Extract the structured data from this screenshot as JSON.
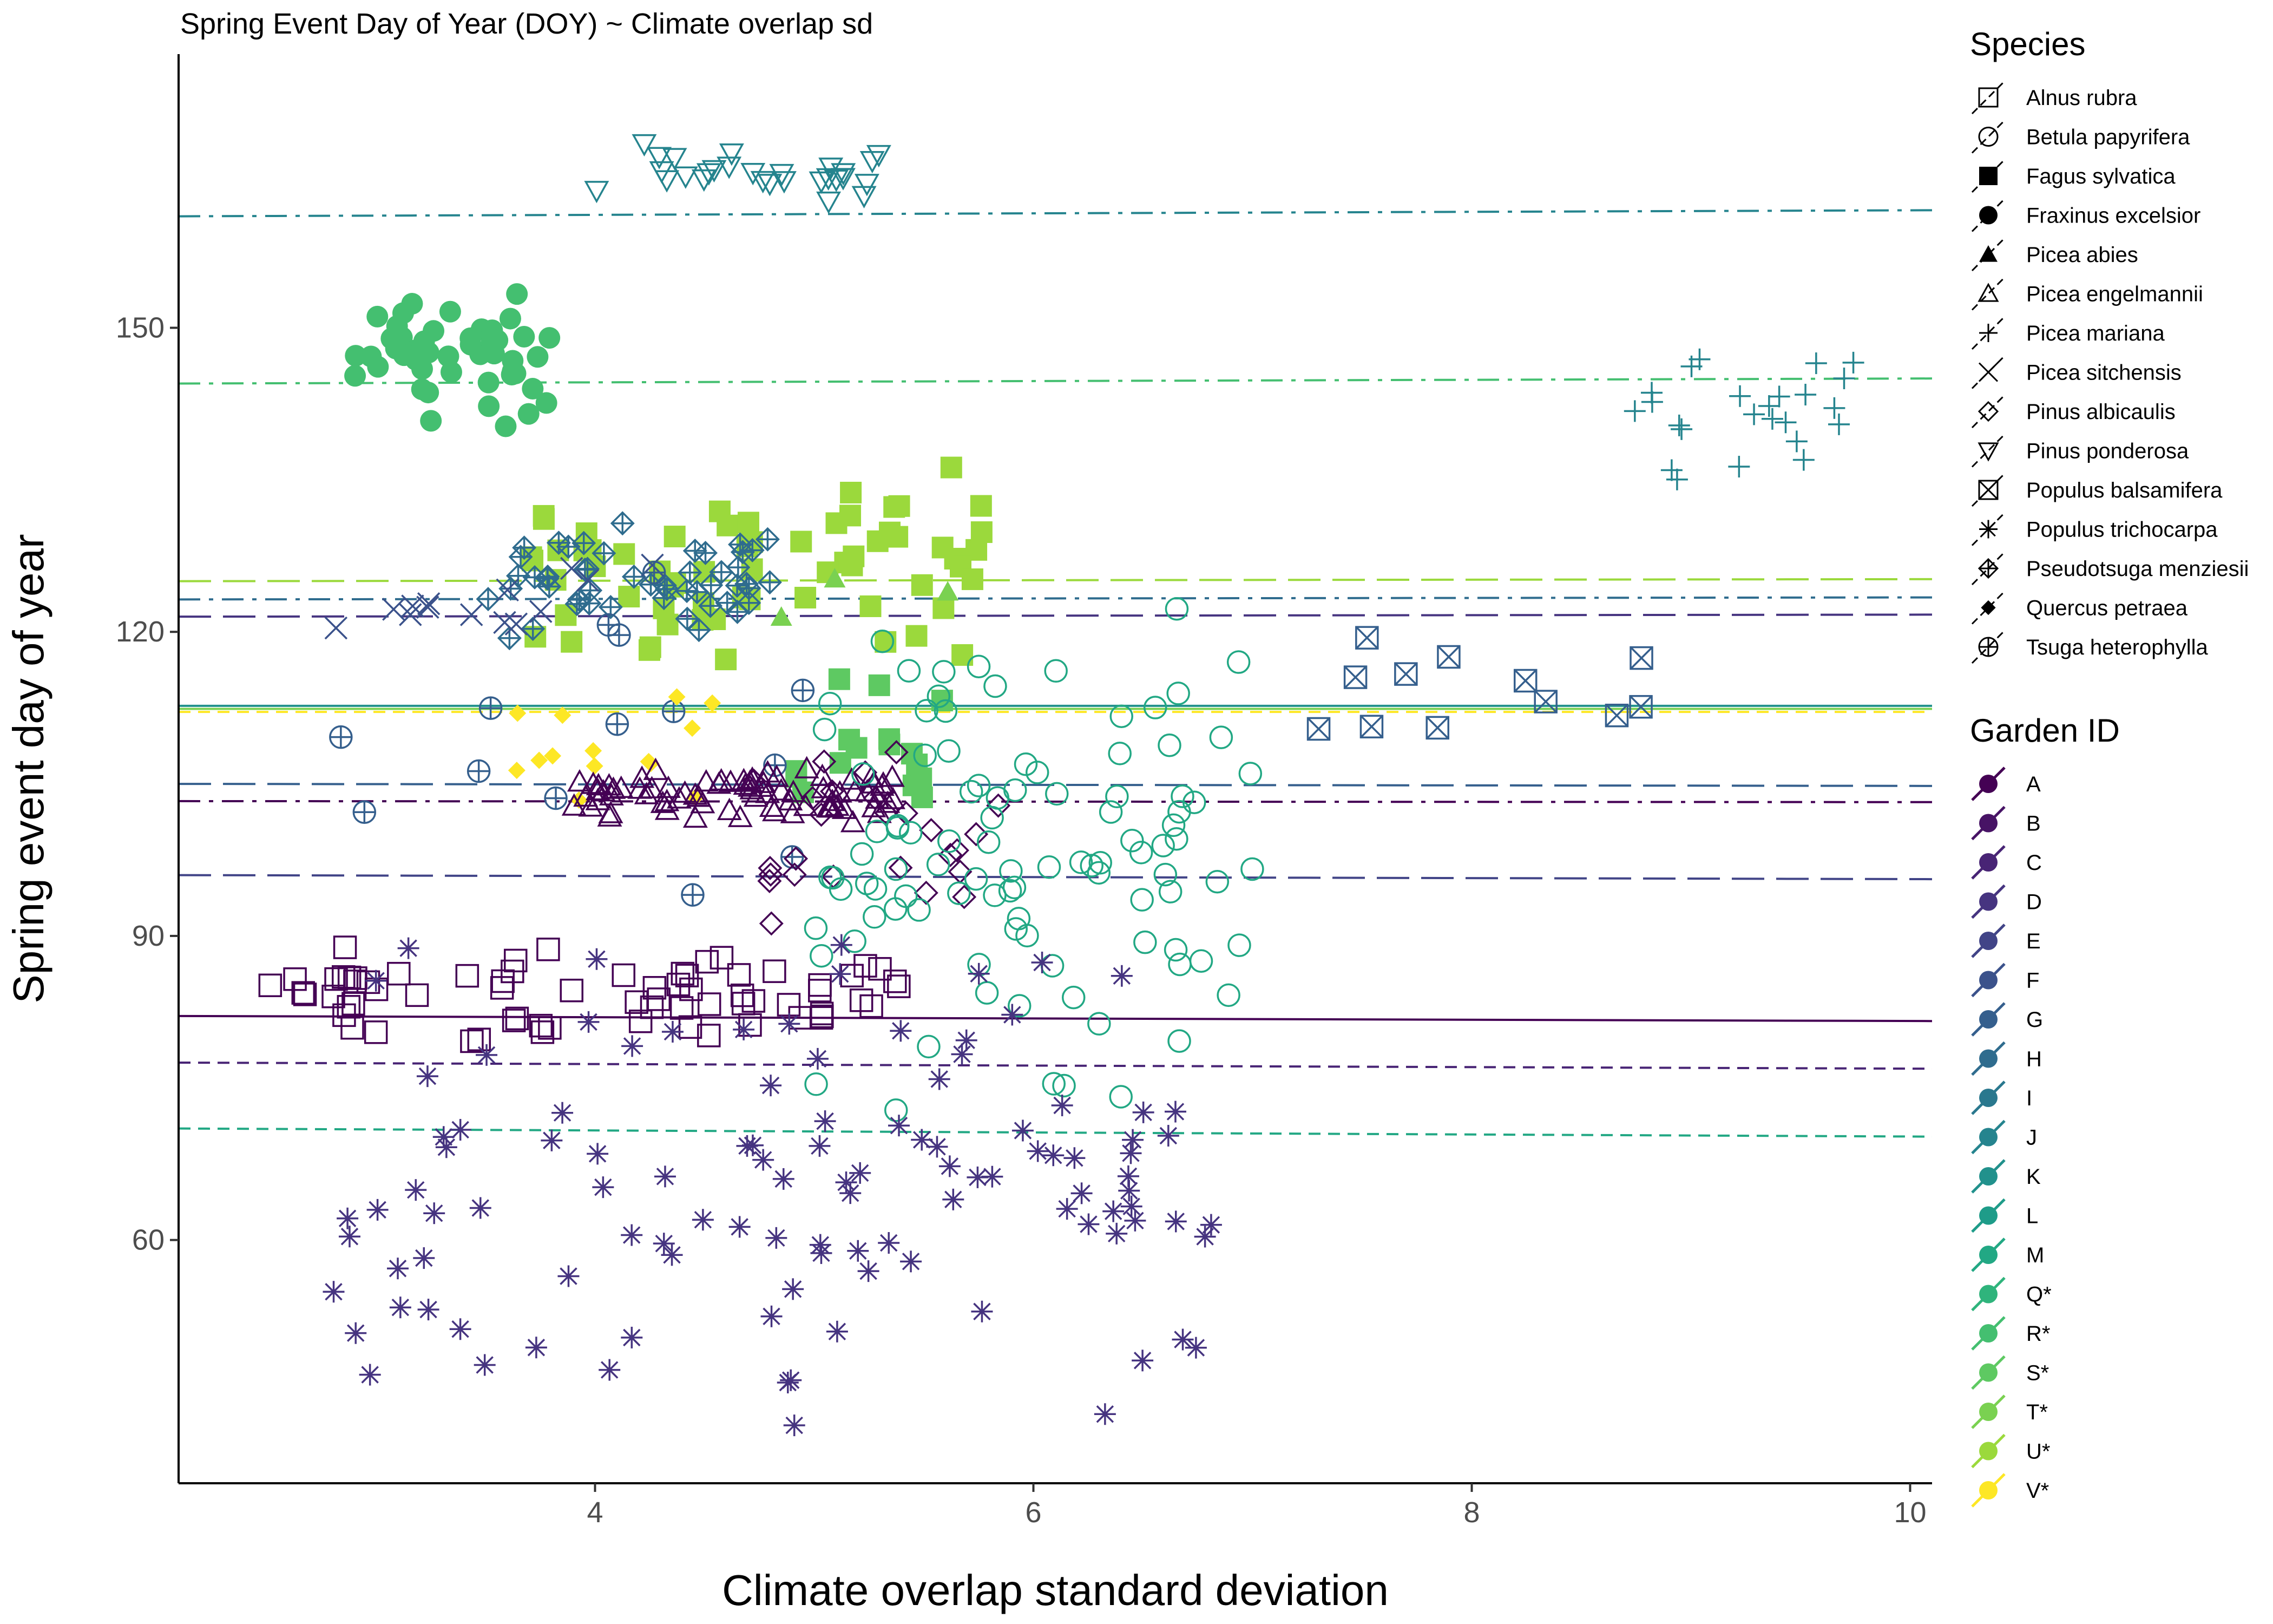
{
  "chart_data": {
    "type": "scatter",
    "title": "Spring Event Day of Year (DOY) ~ Climate overlap sd",
    "xlabel": "Climate overlap standard deviation",
    "ylabel": "Spring event day of year",
    "xlim": [
      2.1,
      10.1
    ],
    "ylim": [
      36,
      177
    ],
    "x_ticks": [
      4,
      6,
      8,
      10
    ],
    "y_ticks": [
      60,
      90,
      120,
      150
    ],
    "grid": false,
    "legend_placement": "right",
    "species_legend": {
      "title": "Species",
      "items": [
        {
          "label": "Alnus rubra",
          "shape": "square-open"
        },
        {
          "label": "Betula papyrifera",
          "shape": "circle-open"
        },
        {
          "label": "Fagus sylvatica",
          "shape": "square-filled"
        },
        {
          "label": "Fraxinus excelsior",
          "shape": "circle-filled"
        },
        {
          "label": "Picea abies",
          "shape": "triangle-filled"
        },
        {
          "label": "Picea engelmannii",
          "shape": "triangle-open"
        },
        {
          "label": "Picea mariana",
          "shape": "plus"
        },
        {
          "label": "Picea sitchensis",
          "shape": "cross"
        },
        {
          "label": "Pinus albicaulis",
          "shape": "diamond-open"
        },
        {
          "label": "Pinus ponderosa",
          "shape": "triangle-down-open"
        },
        {
          "label": "Populus balsamifera",
          "shape": "square-cross"
        },
        {
          "label": "Populus trichocarpa",
          "shape": "asterisk"
        },
        {
          "label": "Pseudotsuga menziesii",
          "shape": "diamond-plus"
        },
        {
          "label": "Quercus petraea",
          "shape": "diamond-filled"
        },
        {
          "label": "Tsuga heterophylla",
          "shape": "circle-plus"
        }
      ]
    },
    "garden_legend": {
      "title": "Garden ID",
      "items": [
        {
          "label": "A",
          "color": "#440154"
        },
        {
          "label": "B",
          "color": "#471365"
        },
        {
          "label": "C",
          "color": "#482475"
        },
        {
          "label": "D",
          "color": "#463480"
        },
        {
          "label": "E",
          "color": "#414487"
        },
        {
          "label": "F",
          "color": "#3b528b"
        },
        {
          "label": "G",
          "color": "#355f8d"
        },
        {
          "label": "H",
          "color": "#2f6c8e"
        },
        {
          "label": "I",
          "color": "#2a788e"
        },
        {
          "label": "J",
          "color": "#25848e"
        },
        {
          "label": "K",
          "color": "#21918c"
        },
        {
          "label": "L",
          "color": "#1e9c89"
        },
        {
          "label": "M",
          "color": "#22a884"
        },
        {
          "label": "Q*",
          "color": "#2fb47c"
        },
        {
          "label": "R*",
          "color": "#44bf70"
        },
        {
          "label": "S*",
          "color": "#5ec962"
        },
        {
          "label": "T*",
          "color": "#7ad151"
        },
        {
          "label": "U*",
          "color": "#9bd93c"
        },
        {
          "label": "V*",
          "color": "#fde725"
        }
      ]
    },
    "trend_lines": [
      {
        "y0": 161,
        "y1": 161.6,
        "color": "#25848e",
        "dash": "dashdot"
      },
      {
        "y0": 144.5,
        "y1": 145,
        "color": "#44bf70",
        "dash": "dashdot"
      },
      {
        "y0": 125,
        "y1": 125.2,
        "color": "#9bd93c",
        "dash": "longdash"
      },
      {
        "y0": 123.2,
        "y1": 123.4,
        "color": "#2f6c8e",
        "dash": "dashdot"
      },
      {
        "y0": 121.5,
        "y1": 121.7,
        "color": "#463480",
        "dash": "longdash"
      },
      {
        "y0": 112.7,
        "y1": 112.7,
        "color": "#21918c",
        "dash": "solid"
      },
      {
        "y0": 112.4,
        "y1": 112.4,
        "color": "#7ad151",
        "dash": "solid"
      },
      {
        "y0": 112.1,
        "y1": 112.1,
        "color": "#fde725",
        "dash": "dashed"
      },
      {
        "y0": 105,
        "y1": 104.8,
        "color": "#355f8d",
        "dash": "longdash"
      },
      {
        "y0": 103.3,
        "y1": 103.2,
        "color": "#440154",
        "dash": "dashdot"
      },
      {
        "y0": 96,
        "y1": 95.6,
        "color": "#414487",
        "dash": "longdash"
      },
      {
        "y0": 82.1,
        "y1": 81.6,
        "color": "#440154",
        "dash": "solid"
      },
      {
        "y0": 77.5,
        "y1": 76.9,
        "color": "#482475",
        "dash": "dashed"
      },
      {
        "y0": 71,
        "y1": 70.2,
        "color": "#22a884",
        "dash": "dashed"
      }
    ],
    "clusters": [
      {
        "species": "Pinus ponderosa",
        "color": "#25848e",
        "xr": [
          4.0,
          5.3
        ],
        "yr": [
          161,
          170
        ],
        "n": 28
      },
      {
        "species": "Fraxinus excelsior",
        "color": "#44bf70",
        "xr": [
          2.9,
          3.8
        ],
        "yr": [
          139,
          155
        ],
        "n": 48
      },
      {
        "species": "Picea mariana",
        "color": "#25848e",
        "xr": [
          8.7,
          9.75
        ],
        "yr": [
          133,
          150
        ],
        "n": 24
      },
      {
        "species": "Fagus sylvatica",
        "color": "#9bd93c",
        "xr": [
          3.7,
          5.8
        ],
        "yr": [
          116,
          137
        ],
        "n": 64
      },
      {
        "species": "Fagus sylvatica",
        "color": "#5ec962",
        "xr": [
          4.9,
          5.6
        ],
        "yr": [
          100,
          118
        ],
        "n": 16
      },
      {
        "species": "Pseudotsuga menziesii",
        "color": "#2f6c8e",
        "xr": [
          3.5,
          4.8
        ],
        "yr": [
          118,
          131
        ],
        "n": 50
      },
      {
        "species": "Picea sitchensis",
        "color": "#3b528b",
        "xr": [
          2.8,
          4.4
        ],
        "yr": [
          118,
          128
        ],
        "n": 14
      },
      {
        "species": "Tsuga heterophylla",
        "color": "#355f8d",
        "xr": [
          2.7,
          5.1
        ],
        "yr": [
          90,
          134
        ],
        "n": 14
      },
      {
        "species": "Populus balsamifera",
        "color": "#355f8d",
        "xr": [
          7.3,
          9.3
        ],
        "yr": [
          110,
          121
        ],
        "n": 12
      },
      {
        "species": "Quercus petraea",
        "color": "#fde725",
        "xr": [
          3.6,
          4.6
        ],
        "yr": [
          101,
          115
        ],
        "n": 14
      },
      {
        "species": "Picea engelmannii",
        "color": "#440154",
        "xr": [
          3.9,
          5.4
        ],
        "yr": [
          101,
          107
        ],
        "n": 80
      },
      {
        "species": "Picea abies",
        "color": "#7ad151",
        "xr": [
          4.8,
          5.8
        ],
        "yr": [
          114,
          128
        ],
        "n": 3
      },
      {
        "species": "Pinus albicaulis",
        "color": "#440154",
        "xr": [
          4.7,
          5.9
        ],
        "yr": [
          90,
          110
        ],
        "n": 26
      },
      {
        "species": "Betula papyrifera",
        "color": "#22a884",
        "xr": [
          5.0,
          7.0
        ],
        "yr": [
          70,
          125
        ],
        "n": 100
      },
      {
        "species": "Alnus rubra",
        "color": "#440154",
        "xr": [
          2.5,
          5.4
        ],
        "yr": [
          79,
          90
        ],
        "n": 70
      },
      {
        "species": "Populus trichocarpa",
        "color": "#463480",
        "xr": [
          2.8,
          6.9
        ],
        "yr": [
          40,
          93
        ],
        "n": 110
      }
    ]
  }
}
